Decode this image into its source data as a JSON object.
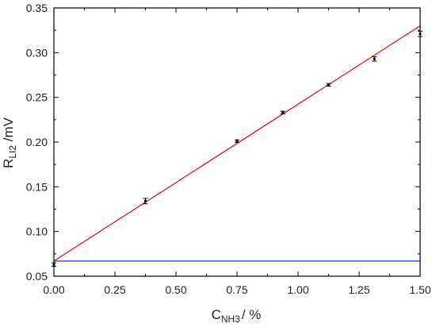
{
  "chart_data": {
    "type": "scatter",
    "xlabel": {
      "main": "C",
      "sub": "NH3",
      "suffix": "/ %"
    },
    "ylabel": {
      "main": "R",
      "sub": "LI2",
      "suffix": " /mV"
    },
    "xlim": [
      0.0,
      1.5
    ],
    "ylim": [
      0.05,
      0.35
    ],
    "xticks": [
      "0.00",
      "0.25",
      "0.50",
      "0.75",
      "1.00",
      "1.25",
      "1.50"
    ],
    "yticks": [
      "0.05",
      "0.10",
      "0.15",
      "0.20",
      "0.25",
      "0.30",
      "0.35"
    ],
    "grid": false,
    "series": [
      {
        "kind": "points_with_error",
        "color": "#000000",
        "points": [
          {
            "x": 0.0,
            "y": 0.063,
            "err": 0.002
          },
          {
            "x": 0.375,
            "y": 0.134,
            "err": 0.003
          },
          {
            "x": 0.75,
            "y": 0.201,
            "err": 0.0015
          },
          {
            "x": 0.9375,
            "y": 0.233,
            "err": 0.0015
          },
          {
            "x": 1.125,
            "y": 0.264,
            "err": 0.0015
          },
          {
            "x": 1.3125,
            "y": 0.293,
            "err": 0.0025
          },
          {
            "x": 1.5,
            "y": 0.321,
            "err": 0.003
          }
        ]
      },
      {
        "kind": "fit_line",
        "color": "#e8141b",
        "x": [
          0.0,
          1.5
        ],
        "y": [
          0.067,
          0.33
        ]
      },
      {
        "kind": "baseline",
        "color": "#1f2fd6",
        "x": [
          0.0,
          1.5
        ],
        "y": [
          0.067,
          0.067
        ]
      }
    ]
  }
}
